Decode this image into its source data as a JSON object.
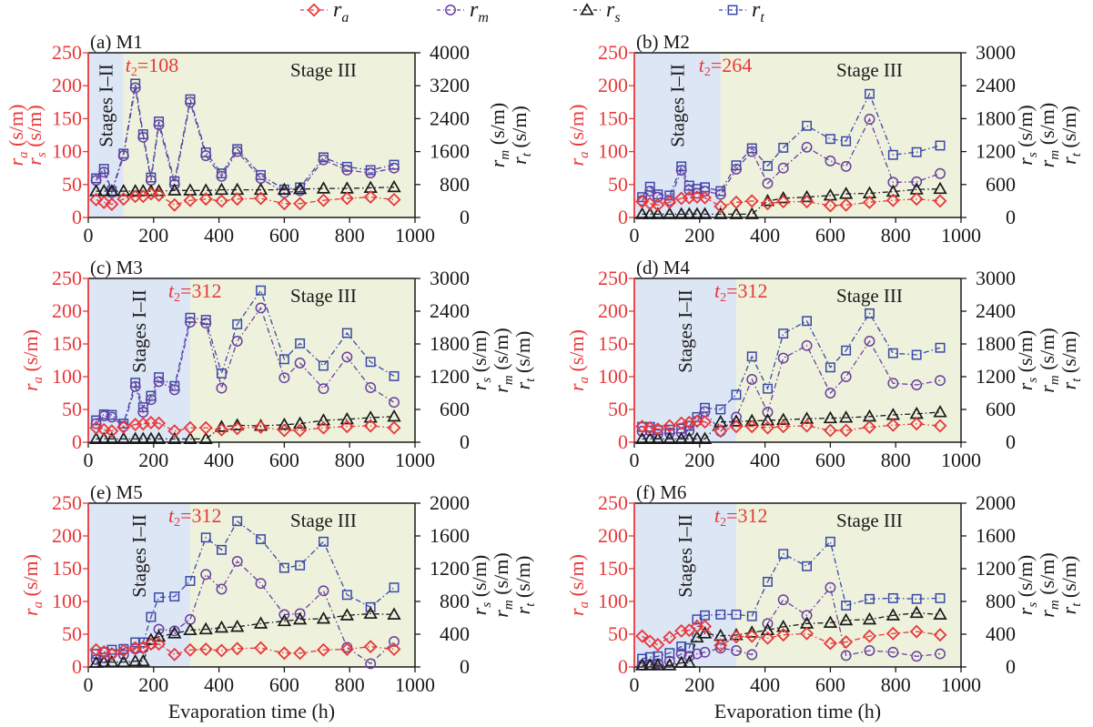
{
  "chart_data": {
    "type": "line",
    "legend": {
      "placement": "top",
      "entries": [
        {
          "key": "ra",
          "label": "r",
          "sub": "a",
          "color": "#e8383a",
          "marker": "diamond"
        },
        {
          "key": "rm",
          "label": "r",
          "sub": "m",
          "color": "#6a3fa0",
          "marker": "circle"
        },
        {
          "key": "rs",
          "label": "r",
          "sub": "s",
          "color": "#1a1a1a",
          "marker": "triangle"
        },
        {
          "key": "rt",
          "label": "r",
          "sub": "t",
          "color": "#3a48a8",
          "marker": "square"
        }
      ]
    },
    "xlabel": "Evaporation time (h)",
    "xlim": [
      0,
      1000
    ],
    "xticks": [
      0,
      200,
      400,
      600,
      800,
      1000
    ],
    "stage_labels": {
      "early": "Stages I–II",
      "late": "Stage III"
    },
    "panels": [
      {
        "id": "a",
        "title": "(a) M1",
        "t2_label": "t₂=108",
        "t2": 108,
        "left_ylim": [
          0,
          250
        ],
        "left_yticks": [
          0,
          50,
          100,
          150,
          200,
          250
        ],
        "left_ylabels": [
          "r_a (s/m)",
          "r_s (s/m)"
        ],
        "right_ylim": [
          0,
          4000
        ],
        "right_yticks": [
          0,
          800,
          1600,
          2400,
          3200,
          4000
        ],
        "right_ylabels": [
          "r_m (s/m)",
          "r_t (s/m)"
        ],
        "rs_axis": "left",
        "x": [
          24,
          48,
          72,
          108,
          144,
          168,
          192,
          216,
          264,
          312,
          360,
          408,
          456,
          528,
          600,
          648,
          720,
          792,
          864,
          936
        ],
        "ra": [
          27,
          23,
          20,
          28,
          32,
          32,
          36,
          34,
          19,
          26,
          28,
          25,
          28,
          29,
          21,
          21,
          26,
          29,
          31,
          27
        ],
        "rs": [
          40,
          40,
          40,
          40,
          40,
          40,
          40,
          40,
          41,
          41,
          41,
          42,
          42,
          42,
          42,
          43,
          44,
          44,
          45,
          46
        ],
        "rm": [
          900,
          1100,
          600,
          1500,
          3150,
          1950,
          900,
          2250,
          800,
          2800,
          1500,
          1000,
          1600,
          950,
          600,
          650,
          1400,
          1150,
          1080,
          1200
        ],
        "rt": [
          950,
          1180,
          640,
          1550,
          3250,
          2020,
          970,
          2330,
          880,
          2870,
          1580,
          1070,
          1660,
          1030,
          680,
          730,
          1460,
          1230,
          1150,
          1280
        ]
      },
      {
        "id": "b",
        "title": "(b) M2",
        "t2_label": "t₂=264",
        "t2": 264,
        "left_ylim": [
          0,
          250
        ],
        "left_yticks": [
          0,
          50,
          100,
          150,
          200,
          250
        ],
        "left_ylabels": [
          "r_a (s/m)"
        ],
        "right_ylim": [
          0,
          3000
        ],
        "right_yticks": [
          0,
          600,
          1200,
          1800,
          2400,
          3000
        ],
        "right_ylabels": [
          "r_s (s/m)",
          "r_m (s/m)",
          "r_t (s/m)"
        ],
        "rs_axis": "right",
        "x": [
          24,
          48,
          72,
          108,
          144,
          168,
          192,
          216,
          264,
          312,
          360,
          408,
          456,
          528,
          600,
          648,
          720,
          792,
          864,
          936
        ],
        "ra": [
          24,
          21,
          19,
          23,
          29,
          30,
          31,
          30,
          17,
          23,
          25,
          21,
          24,
          24,
          18,
          19,
          23,
          26,
          28,
          25
        ],
        "rs": [
          60,
          60,
          60,
          60,
          60,
          60,
          60,
          60,
          60,
          60,
          60,
          300,
          350,
          370,
          400,
          430,
          440,
          470,
          510,
          520
        ],
        "rm": [
          310,
          480,
          370,
          310,
          860,
          500,
          440,
          480,
          420,
          880,
          1200,
          620,
          900,
          1280,
          1030,
          930,
          1790,
          640,
          650,
          800
        ],
        "rt": [
          370,
          560,
          420,
          400,
          930,
          580,
          520,
          550,
          480,
          950,
          1260,
          940,
          1270,
          1670,
          1430,
          1390,
          2250,
          1140,
          1190,
          1310
        ]
      },
      {
        "id": "c",
        "title": "(c) M3",
        "t2_label": "t₂=312",
        "t2": 312,
        "left_ylim": [
          0,
          250
        ],
        "left_yticks": [
          0,
          50,
          100,
          150,
          200,
          250
        ],
        "left_ylabels": [
          "r_a (s/m)"
        ],
        "right_ylim": [
          0,
          3000
        ],
        "right_yticks": [
          0,
          600,
          1200,
          1800,
          2400,
          3000
        ],
        "right_ylabels": [
          "r_s (s/m)",
          "r_m (s/m)",
          "r_t (s/m)"
        ],
        "rs_axis": "right",
        "x": [
          24,
          48,
          72,
          108,
          144,
          168,
          192,
          216,
          264,
          312,
          360,
          408,
          456,
          528,
          600,
          648,
          720,
          792,
          864,
          936
        ],
        "ra": [
          22,
          19,
          17,
          23,
          27,
          28,
          30,
          29,
          17,
          22,
          22,
          19,
          21,
          23,
          18,
          18,
          22,
          24,
          25,
          22
        ],
        "rs": [
          60,
          60,
          60,
          60,
          60,
          60,
          60,
          60,
          60,
          60,
          60,
          280,
          310,
          300,
          320,
          340,
          400,
          420,
          450,
          470
        ],
        "rm": [
          340,
          480,
          460,
          290,
          1020,
          550,
          780,
          1110,
          960,
          2200,
          2180,
          990,
          1850,
          2460,
          1180,
          1450,
          980,
          1560,
          1000,
          730
        ],
        "rt": [
          400,
          510,
          500,
          340,
          1090,
          640,
          850,
          1190,
          1030,
          2280,
          2240,
          1260,
          2160,
          2780,
          1520,
          1810,
          1400,
          2000,
          1470,
          1210
        ]
      },
      {
        "id": "d",
        "title": "(d) M4",
        "t2_label": "t₂=312",
        "t2": 312,
        "left_ylim": [
          0,
          250
        ],
        "left_yticks": [
          0,
          50,
          100,
          150,
          200,
          250
        ],
        "left_ylabels": [
          "r_a (s/m)"
        ],
        "right_ylim": [
          0,
          3000
        ],
        "right_yticks": [
          0,
          600,
          1200,
          1800,
          2400,
          3000
        ],
        "right_ylabels": [
          "r_s (s/m)",
          "r_m (s/m)",
          "r_t (s/m)"
        ],
        "rs_axis": "right",
        "x": [
          24,
          48,
          72,
          108,
          144,
          168,
          192,
          216,
          264,
          312,
          360,
          408,
          456,
          528,
          600,
          648,
          720,
          792,
          864,
          936
        ],
        "ra": [
          24,
          22,
          20,
          25,
          29,
          30,
          32,
          31,
          17,
          24,
          24,
          22,
          24,
          25,
          18,
          18,
          23,
          26,
          28,
          25
        ],
        "rs": [
          60,
          60,
          60,
          60,
          60,
          60,
          60,
          60,
          370,
          380,
          390,
          400,
          410,
          430,
          440,
          450,
          470,
          500,
          520,
          550
        ],
        "rm": [
          200,
          210,
          150,
          170,
          170,
          210,
          390,
          560,
          200,
          460,
          1150,
          550,
          1540,
          1770,
          900,
          1200,
          1850,
          1080,
          1050,
          1130
        ],
        "rt": [
          280,
          280,
          220,
          230,
          250,
          300,
          460,
          630,
          600,
          870,
          1570,
          980,
          1990,
          2220,
          1370,
          1680,
          2360,
          1630,
          1600,
          1730
        ]
      },
      {
        "id": "e",
        "title": "(e) M5",
        "t2_label": "t₂=312",
        "t2": 312,
        "left_ylim": [
          0,
          250
        ],
        "left_yticks": [
          0,
          50,
          100,
          150,
          200,
          250
        ],
        "left_ylabels": [
          "r_a (s/m)"
        ],
        "right_ylim": [
          0,
          2000
        ],
        "right_yticks": [
          0,
          400,
          800,
          1200,
          1600,
          2000
        ],
        "right_ylabels": [
          "r_s (s/m)",
          "r_m (s/m)",
          "r_t (s/m)"
        ],
        "rs_axis": "right",
        "x": [
          24,
          48,
          72,
          108,
          144,
          168,
          192,
          216,
          264,
          312,
          360,
          408,
          456,
          528,
          600,
          648,
          720,
          792,
          864,
          936
        ],
        "ra": [
          26,
          23,
          20,
          25,
          29,
          30,
          35,
          35,
          19,
          26,
          27,
          25,
          28,
          29,
          21,
          21,
          26,
          27,
          31,
          27
        ],
        "rs": [
          50,
          60,
          60,
          60,
          70,
          70,
          330,
          370,
          410,
          450,
          460,
          480,
          490,
          530,
          560,
          580,
          590,
          630,
          650,
          640
        ],
        "rm": [
          90,
          110,
          160,
          150,
          220,
          230,
          280,
          460,
          440,
          580,
          1130,
          950,
          1290,
          1020,
          640,
          650,
          930,
          240,
          40,
          310
        ],
        "rt": [
          160,
          180,
          210,
          220,
          300,
          300,
          610,
          850,
          860,
          1050,
          1580,
          1430,
          1780,
          1560,
          1210,
          1240,
          1530,
          880,
          730,
          970
        ]
      },
      {
        "id": "f",
        "title": "(f) M6",
        "t2_label": "t₂=312",
        "t2": 312,
        "left_ylim": [
          0,
          250
        ],
        "left_yticks": [
          0,
          50,
          100,
          150,
          200,
          250
        ],
        "left_ylabels": [
          "r_a (s/m)"
        ],
        "right_ylim": [
          0,
          2000
        ],
        "right_yticks": [
          0,
          400,
          800,
          1200,
          1600,
          2000
        ],
        "right_ylabels": [
          "r_s (s/m)",
          "r_m (s/m)",
          "r_t (s/m)"
        ],
        "rs_axis": "right",
        "x": [
          24,
          48,
          72,
          108,
          144,
          168,
          192,
          216,
          264,
          312,
          360,
          408,
          456,
          528,
          600,
          648,
          720,
          792,
          864,
          936
        ],
        "ra": [
          47,
          39,
          34,
          45,
          55,
          56,
          62,
          62,
          33,
          46,
          47,
          44,
          49,
          51,
          36,
          38,
          47,
          51,
          54,
          49
        ],
        "rs": [
          20,
          20,
          20,
          20,
          50,
          50,
          360,
          410,
          380,
          390,
          420,
          450,
          490,
          530,
          540,
          570,
          580,
          630,
          660,
          640
        ],
        "rm": [
          20,
          30,
          40,
          70,
          160,
          130,
          160,
          180,
          230,
          200,
          150,
          530,
          820,
          630,
          970,
          140,
          200,
          180,
          130,
          160
        ],
        "rt": [
          100,
          120,
          130,
          170,
          250,
          230,
          580,
          630,
          640,
          640,
          620,
          1040,
          1380,
          1230,
          1530,
          750,
          830,
          840,
          830,
          840
        ]
      }
    ]
  }
}
